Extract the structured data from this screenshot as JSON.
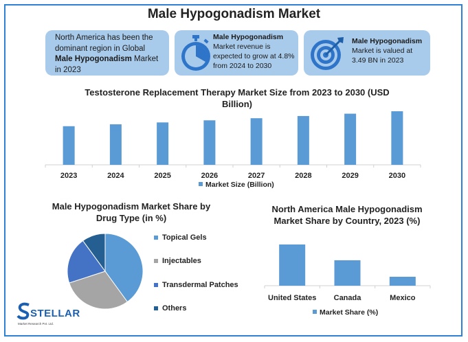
{
  "title": "Male Hypogonadism Market",
  "cards": [
    {
      "line1": "North America has been the",
      "line2": "dominant region in Global",
      "bold": "Male Hypogonadism",
      "after_bold": " Market",
      "line4": "in 2023"
    },
    {
      "heading": "Male Hypogonadism",
      "lines": [
        "Market revenue is",
        "expected to grow at 4.8%",
        "from 2024 to 2030"
      ]
    },
    {
      "heading": "Male Hypogonadism",
      "lines": [
        "Market is valued at",
        "3.49 BN in 2023"
      ]
    }
  ],
  "chart_data": [
    {
      "type": "bar",
      "title_lines": [
        "Testosterone Replacement Therapy Market Size from 2023 to 2030 (USD",
        "Billion)"
      ],
      "categories": [
        "2023",
        "2024",
        "2025",
        "2026",
        "2027",
        "2028",
        "2029",
        "2030"
      ],
      "series": [
        {
          "name": "Market Size (Billion)",
          "values": [
            3.49,
            3.66,
            3.83,
            4.02,
            4.21,
            4.41,
            4.62,
            4.84
          ]
        }
      ],
      "ylim": [
        0,
        4.84
      ],
      "grid": false,
      "legend": "bottom",
      "color": "#5b9bd5"
    },
    {
      "type": "pie",
      "title_lines": [
        "Male Hypogonadism Market Share by",
        "Drug Type (in %)"
      ],
      "labels": [
        "Topical Gels",
        "Injectables",
        "Transdermal Patches",
        "Others"
      ],
      "values": [
        40,
        30,
        20,
        10
      ],
      "colors": [
        "#5b9bd5",
        "#a5a5a5",
        "#4472c4",
        "#255e91"
      ],
      "legend": "right"
    },
    {
      "type": "bar",
      "title_lines": [
        "North America Male Hypogonadism",
        "Market Share by Country, 2023 (%)"
      ],
      "categories": [
        "United States",
        "Canada",
        "Mexico"
      ],
      "series": [
        {
          "name": "Market Share (%)",
          "values": [
            60,
            37,
            13
          ]
        }
      ],
      "ylim": [
        0,
        60
      ],
      "grid": false,
      "legend": "bottom",
      "color": "#5b9bd5"
    }
  ],
  "logo": {
    "name": "STELLAR",
    "tagline": "Market Research Pvt. Ltd."
  }
}
